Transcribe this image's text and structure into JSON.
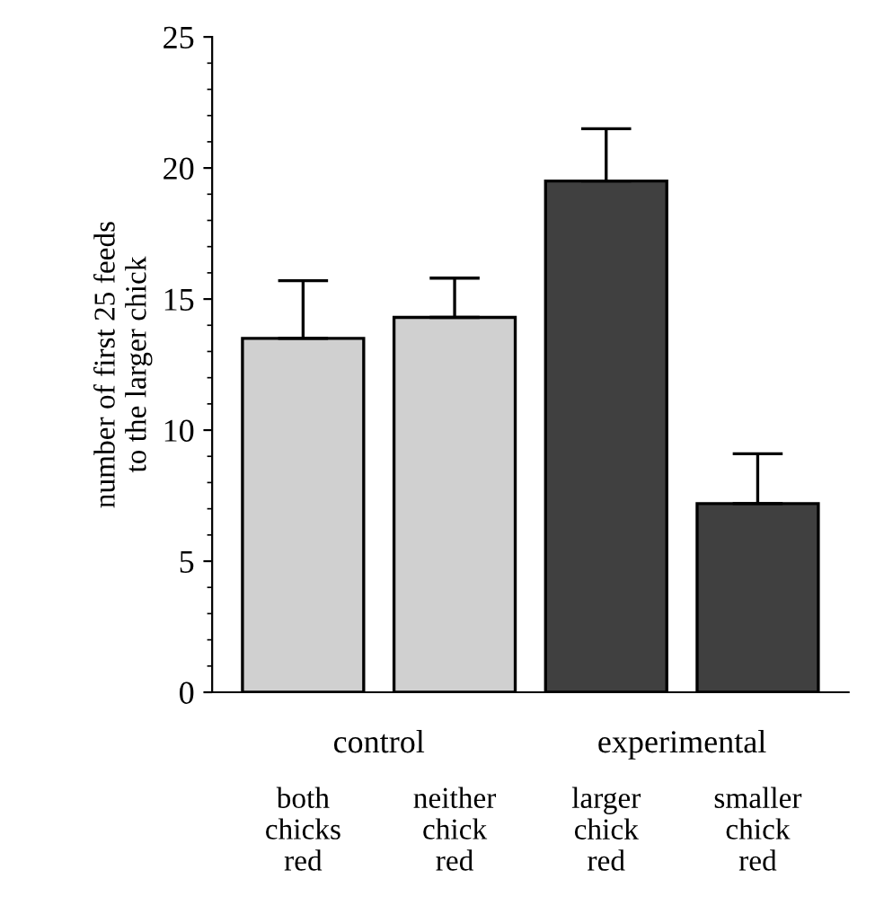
{
  "chart_data": {
    "type": "bar",
    "ylabel": "number of first 25 feeds\nto the larger chick",
    "categories": [
      "both\nchicks\nred",
      "neither\nchick\nred",
      "larger\nchick\nred",
      "smaller\nchick\nred"
    ],
    "values": [
      13.5,
      14.3,
      19.5,
      7.2
    ],
    "errors": [
      [
        13.5,
        15.7
      ],
      [
        14.3,
        15.8
      ],
      [
        19.5,
        21.5
      ],
      [
        7.2,
        9.1
      ]
    ],
    "colors": [
      "#d0d0d0",
      "#d0d0d0",
      "#404040",
      "#404040"
    ],
    "ylim": [
      0,
      25
    ],
    "yticks": [
      0,
      5,
      10,
      15,
      20,
      25
    ],
    "grid": false,
    "annotations": [
      "control",
      "experimental"
    ]
  }
}
